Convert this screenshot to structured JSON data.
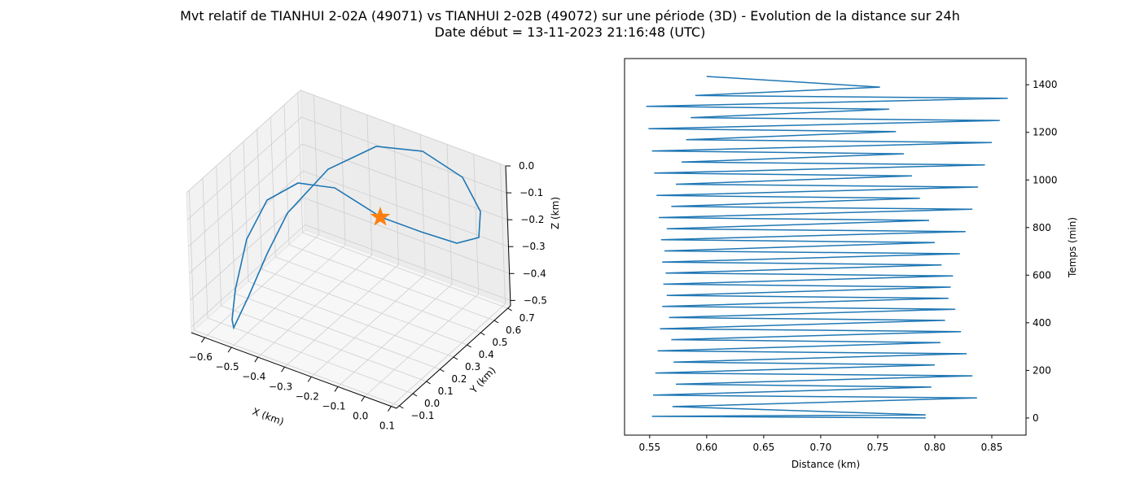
{
  "figure": {
    "title_line1": "Mvt relatif de TIANHUI 2-02A (49071) vs TIANHUI 2-02B (49072) sur une période (3D) - Evolution de la distance sur 24h",
    "title_line2": "Date début = 13-11-2023 21:16:48 (UTC)"
  },
  "chart_data": [
    {
      "type": "line3d",
      "xlabel": "X (km)",
      "ylabel": "Y (km)",
      "zlabel": "Z (km)",
      "x_ticks": [
        "−0.6",
        "−0.5",
        "−0.4",
        "−0.3",
        "−0.2",
        "−0.1",
        "0.0",
        "0.1"
      ],
      "y_ticks": [
        "−0.1",
        "0.0",
        "0.1",
        "0.2",
        "0.3",
        "0.4",
        "0.5",
        "0.6",
        "0.7"
      ],
      "z_ticks": [
        "0.0",
        "−0.1",
        "−0.2",
        "−0.3",
        "−0.4",
        "−0.5"
      ],
      "xlim": [
        -0.65,
        0.12
      ],
      "ylim": [
        -0.12,
        0.72
      ],
      "zlim": [
        -0.52,
        0.0
      ],
      "series_color": "#1f77b4",
      "marker": {
        "symbol": "star",
        "color": "#ff7f0e",
        "x": 0.0,
        "y": 0.0,
        "z": 0.0
      },
      "grid": true
    },
    {
      "type": "line",
      "xlabel": "Distance (km)",
      "ylabel": "Temps (min)",
      "x_ticks": [
        "0.55",
        "0.60",
        "0.65",
        "0.70",
        "0.75",
        "0.80",
        "0.85"
      ],
      "y_ticks": [
        "0",
        "200",
        "400",
        "600",
        "800",
        "1000",
        "1200",
        "1400"
      ],
      "xlim": [
        0.528,
        0.88
      ],
      "ylim": [
        -72,
        1510
      ],
      "series_color": "#1f77b4",
      "series": [
        {
          "distance": [
            0.792,
            0.552,
            0.792,
            0.57,
            0.837,
            0.553,
            0.797,
            0.573,
            0.833,
            0.555,
            0.8,
            0.571,
            0.828,
            0.557,
            0.805,
            0.569,
            0.823,
            0.559,
            0.809,
            0.567,
            0.818,
            0.561,
            0.812,
            0.565,
            0.814,
            0.562,
            0.816,
            0.564,
            0.806,
            0.561,
            0.822,
            0.563,
            0.8,
            0.56,
            0.827,
            0.565,
            0.795,
            0.558,
            0.833,
            0.569,
            0.787,
            0.556,
            0.838,
            0.573,
            0.78,
            0.554,
            0.844,
            0.578,
            0.773,
            0.552,
            0.85,
            0.582,
            0.766,
            0.549,
            0.857,
            0.586,
            0.76,
            0.547,
            0.864,
            0.59,
            0.752,
            0.6
          ],
          "time": [
            0,
            7,
            13,
            48,
            84,
            96,
            130,
            142,
            177,
            189,
            223,
            235,
            270,
            282,
            317,
            329,
            363,
            375,
            410,
            422,
            457,
            469,
            503,
            515,
            550,
            562,
            597,
            609,
            643,
            655,
            690,
            702,
            737,
            749,
            783,
            795,
            830,
            842,
            877,
            889,
            923,
            935,
            970,
            982,
            1017,
            1029,
            1063,
            1075,
            1110,
            1122,
            1157,
            1169,
            1203,
            1215,
            1250,
            1262,
            1297,
            1309,
            1343,
            1355,
            1390,
            1435
          ]
        }
      ]
    }
  ]
}
